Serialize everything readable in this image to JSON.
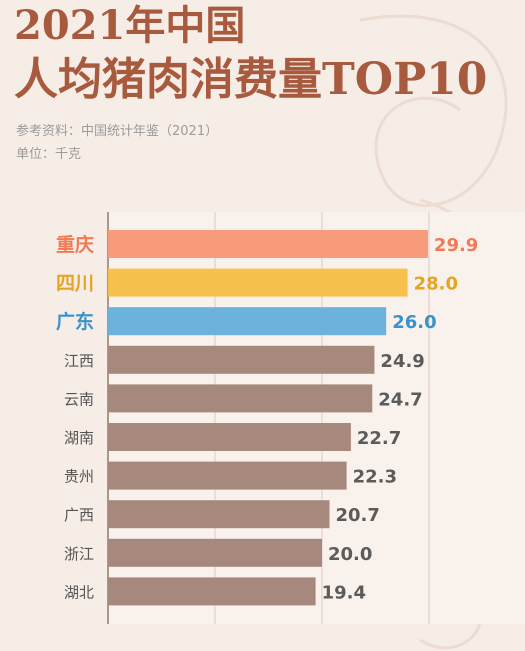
{
  "header": {
    "title_line1": "2021年中国",
    "title_line2": "人均猪肉消费量TOP10",
    "source": "参考资料：中国统计年鉴（2021）",
    "unit": "单位：千克"
  },
  "colors": {
    "background": "#f6ede6",
    "title": "#a85a3e",
    "highlight_1": "#f89a7c",
    "highlight_2": "#f7c14d",
    "highlight_3": "#6bb2dd",
    "default_bar": "#a6887d"
  },
  "chart_data": {
    "type": "bar",
    "orientation": "horizontal",
    "categories": [
      "重庆",
      "四川",
      "广东",
      "江西",
      "云南",
      "湖南",
      "贵州",
      "广西",
      "浙江",
      "湖北"
    ],
    "values": [
      29.9,
      28.0,
      26.0,
      24.9,
      24.7,
      22.7,
      22.3,
      20.7,
      20.0,
      19.4
    ],
    "value_labels": [
      "29.9",
      "28.0",
      "26.0",
      "24.9",
      "24.7",
      "22.7",
      "22.3",
      "20.7",
      "20.0",
      "19.4"
    ],
    "bar_colors": [
      "#f89a7c",
      "#f7c14d",
      "#6bb2dd",
      "#a6887d",
      "#a6887d",
      "#a6887d",
      "#a6887d",
      "#a6887d",
      "#a6887d",
      "#a6887d"
    ],
    "label_colors": [
      "#f07a55",
      "#e6a422",
      "#3a92cc",
      "#555555",
      "#555555",
      "#555555",
      "#555555",
      "#555555",
      "#555555",
      "#555555"
    ],
    "highlight_count": 3,
    "xlim": [
      0,
      40
    ],
    "grid": true
  }
}
